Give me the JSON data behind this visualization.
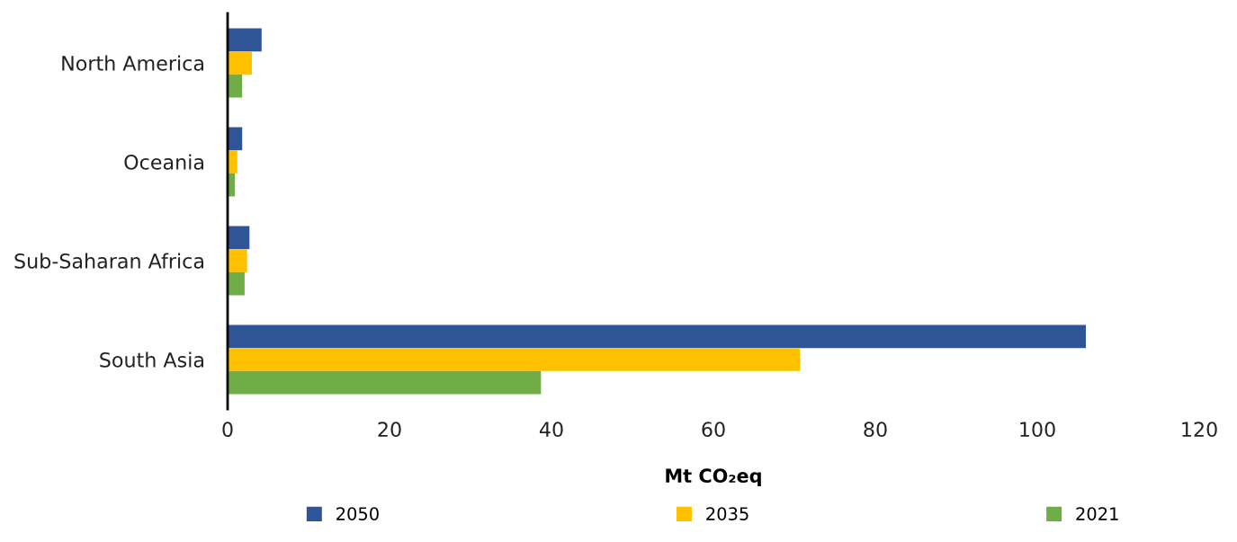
{
  "chart_data": {
    "type": "bar",
    "orientation": "horizontal",
    "xlabel": "Mt CO₂eq",
    "categories": [
      "North America",
      "Oceania",
      "Sub-Saharan Africa",
      "South Asia"
    ],
    "series": [
      {
        "name": "2050",
        "color": "#2f5597",
        "values": [
          4.2,
          1.8,
          2.7,
          106
        ]
      },
      {
        "name": "2035",
        "color": "#ffc000",
        "values": [
          3.0,
          1.2,
          2.4,
          70.7
        ]
      },
      {
        "name": "2021",
        "color": "#70ad47",
        "values": [
          1.8,
          0.9,
          2.1,
          38.7
        ]
      }
    ],
    "xlim": [
      0,
      120
    ],
    "xticks": [
      0,
      20,
      40,
      60,
      80,
      100,
      120
    ],
    "grid": false,
    "legend": "bottom"
  }
}
